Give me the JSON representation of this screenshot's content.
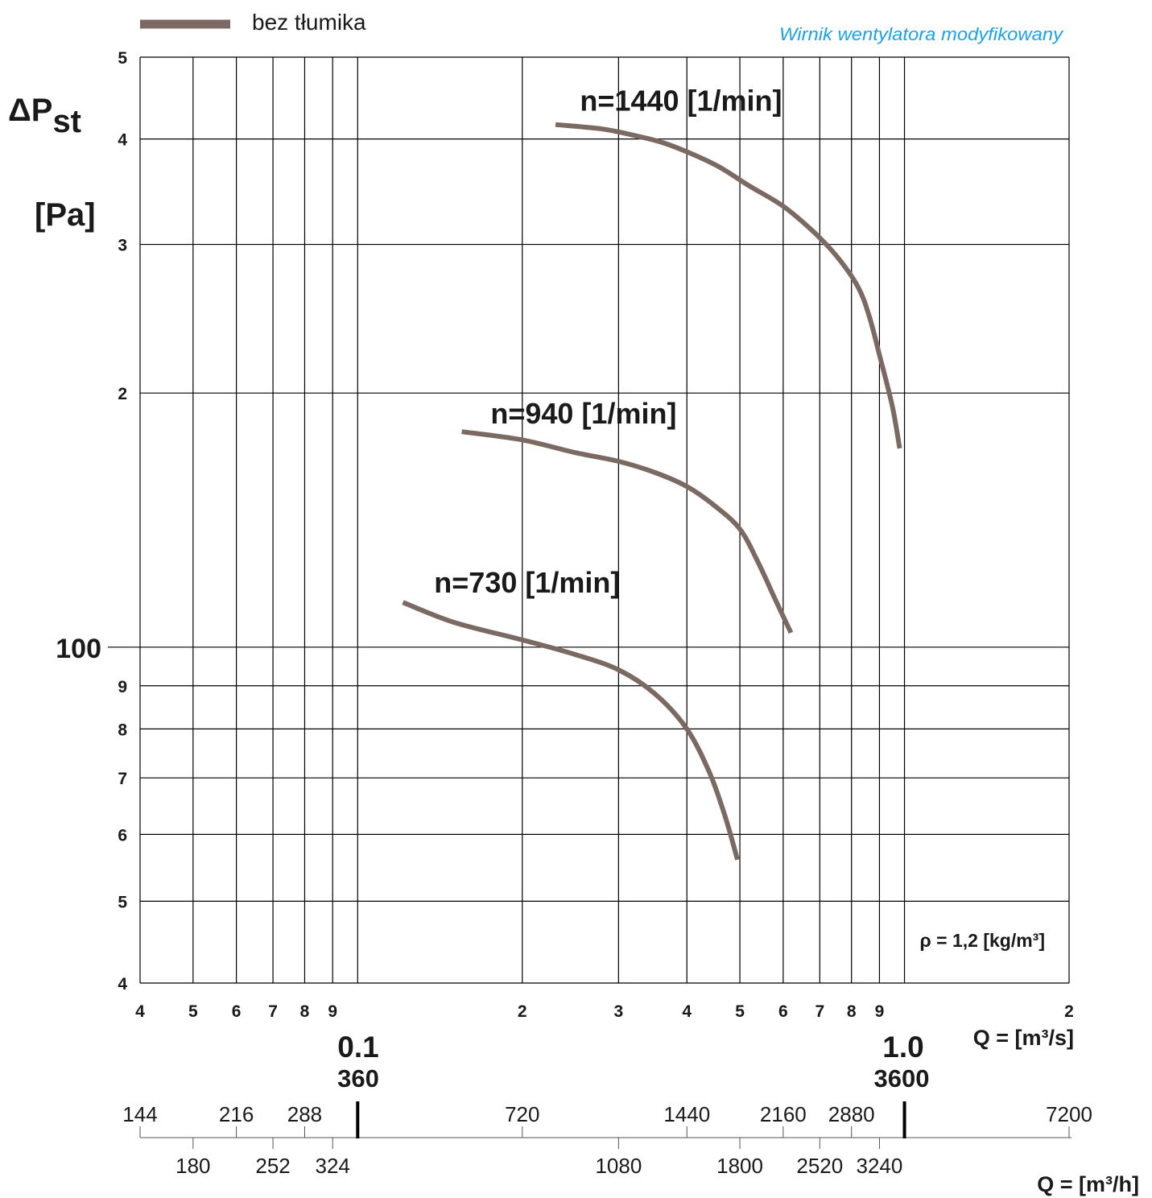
{
  "colors": {
    "curve": "#7b6a63",
    "grid": "#000000",
    "note_accent": "#1aa3e8"
  },
  "legend": {
    "label": "bez tłumika"
  },
  "note": "Wirnik wentylatora modyfikowany",
  "density_note": "ρ = 1,2 [kg/m³]",
  "y_axis_title": {
    "main": "ΔP",
    "sub": "st",
    "unit": "[Pa]"
  },
  "x_axis_title_m3s": "Q = [m³/s]",
  "x_axis_title_m3h": "Q = [m³/h]",
  "decade_labels": {
    "m3s": "0.1",
    "m3h": "360",
    "m3s_2": "1.0",
    "m3h_2": "3600"
  },
  "chart_data": {
    "type": "line",
    "x_scale": "log",
    "y_scale": "log",
    "xlim": [
      0.04,
      2.0
    ],
    "ylim": [
      40,
      500
    ],
    "grid": true,
    "legend_position": "top-left",
    "x_tick_labels": [
      {
        "v": 0.04,
        "t": "4"
      },
      {
        "v": 0.05,
        "t": "5"
      },
      {
        "v": 0.06,
        "t": "6"
      },
      {
        "v": 0.07,
        "t": "7"
      },
      {
        "v": 0.08,
        "t": "8"
      },
      {
        "v": 0.09,
        "t": "9"
      },
      {
        "v": 0.2,
        "t": "2"
      },
      {
        "v": 0.3,
        "t": "3"
      },
      {
        "v": 0.4,
        "t": "4"
      },
      {
        "v": 0.5,
        "t": "5"
      },
      {
        "v": 0.6,
        "t": "6"
      },
      {
        "v": 0.7,
        "t": "7"
      },
      {
        "v": 0.8,
        "t": "8"
      },
      {
        "v": 0.9,
        "t": "9"
      },
      {
        "v": 2.0,
        "t": "2"
      }
    ],
    "y_tick_labels": [
      {
        "v": 40,
        "t": "4"
      },
      {
        "v": 50,
        "t": "5"
      },
      {
        "v": 60,
        "t": "6"
      },
      {
        "v": 70,
        "t": "7"
      },
      {
        "v": 80,
        "t": "8"
      },
      {
        "v": 90,
        "t": "9"
      },
      {
        "v": 100,
        "t": "100"
      },
      {
        "v": 200,
        "t": "2"
      },
      {
        "v": 300,
        "t": "3"
      },
      {
        "v": 400,
        "t": "4"
      },
      {
        "v": 500,
        "t": "5"
      }
    ],
    "m3h_top_labels": [
      {
        "v": 144,
        "t": "144"
      },
      {
        "v": 216,
        "t": "216"
      },
      {
        "v": 288,
        "t": "288"
      },
      {
        "v": 720,
        "t": "720"
      },
      {
        "v": 1440,
        "t": "1440"
      },
      {
        "v": 2160,
        "t": "2160"
      },
      {
        "v": 2880,
        "t": "2880"
      },
      {
        "v": 7200,
        "t": "7200"
      }
    ],
    "m3h_bottom_labels": [
      {
        "v": 180,
        "t": "180"
      },
      {
        "v": 252,
        "t": "252"
      },
      {
        "v": 324,
        "t": "324"
      },
      {
        "v": 1080,
        "t": "1080"
      },
      {
        "v": 1800,
        "t": "1800"
      },
      {
        "v": 2520,
        "t": "2520"
      },
      {
        "v": 3240,
        "t": "3240"
      }
    ],
    "series": [
      {
        "name": "n=1440 [1/min]",
        "label_at": {
          "x": 0.255,
          "y": 432
        },
        "points": [
          [
            0.23,
            416
          ],
          [
            0.28,
            411
          ],
          [
            0.32,
            404
          ],
          [
            0.37,
            394
          ],
          [
            0.45,
            373
          ],
          [
            0.52,
            352
          ],
          [
            0.6,
            333
          ],
          [
            0.68,
            311
          ],
          [
            0.75,
            291
          ],
          [
            0.82,
            268
          ],
          [
            0.86,
            248
          ],
          [
            0.9,
            222
          ],
          [
            0.95,
            193
          ],
          [
            0.98,
            172
          ]
        ]
      },
      {
        "name": "n=940 [1/min]",
        "label_at": {
          "x": 0.175,
          "y": 184
        },
        "points": [
          [
            0.155,
            180
          ],
          [
            0.2,
            176
          ],
          [
            0.25,
            170
          ],
          [
            0.3,
            166
          ],
          [
            0.35,
            161
          ],
          [
            0.4,
            155
          ],
          [
            0.45,
            147
          ],
          [
            0.5,
            138
          ],
          [
            0.54,
            126
          ],
          [
            0.58,
            114
          ],
          [
            0.62,
            104
          ]
        ]
      },
      {
        "name": "n=730 [1/min]",
        "label_at": {
          "x": 0.138,
          "y": 116
        },
        "points": [
          [
            0.121,
            113
          ],
          [
            0.15,
            107
          ],
          [
            0.2,
            102
          ],
          [
            0.25,
            98
          ],
          [
            0.3,
            94
          ],
          [
            0.35,
            88
          ],
          [
            0.4,
            80
          ],
          [
            0.44,
            71
          ],
          [
            0.47,
            63
          ],
          [
            0.495,
            56
          ]
        ]
      }
    ]
  }
}
